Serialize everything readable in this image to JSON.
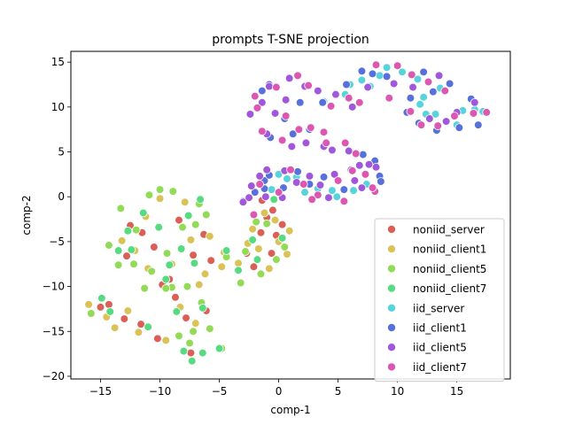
{
  "chart_data": {
    "type": "scatter",
    "title": "prompts T-SNE projection",
    "xlabel": "comp-1",
    "ylabel": "comp-2",
    "xlim": [
      -17.5,
      19.5
    ],
    "ylim": [
      -20.3,
      16.2
    ],
    "xticks": [
      -15,
      -10,
      -5,
      0,
      5,
      10,
      15
    ],
    "yticks": [
      -20,
      -15,
      -10,
      -5,
      0,
      5,
      10,
      15
    ],
    "grid": false,
    "legend_position": "lower-right",
    "series": [
      {
        "name": "noniid_server",
        "color": "#db5f57",
        "points": [
          [
            -15.0,
            -12.3
          ],
          [
            -13.0,
            -13.6
          ],
          [
            -11.5,
            -4.0
          ],
          [
            -10.5,
            -5.6
          ],
          [
            -9.2,
            -9.2
          ],
          [
            -7.2,
            -6.5
          ],
          [
            -6.3,
            -4.2
          ],
          [
            -7.8,
            -13.5
          ],
          [
            -10.2,
            -15.8
          ],
          [
            -11.6,
            -14.2
          ],
          [
            -8.4,
            -2.6
          ],
          [
            -1.0,
            -2.3
          ],
          [
            -0.5,
            -1.5
          ],
          [
            -0.2,
            -4.3
          ],
          [
            -2.1,
            -7.8
          ],
          [
            -0.6,
            -6.3
          ],
          [
            -12.8,
            -6.6
          ],
          [
            -5.7,
            -7.1
          ],
          [
            -1.5,
            -4.0
          ],
          [
            0.3,
            -3.1
          ],
          [
            -8.7,
            -11.2
          ],
          [
            -12.5,
            -3.2
          ],
          [
            -6.1,
            -12.7
          ],
          [
            -9.8,
            -9.8
          ],
          [
            -7.4,
            -17.4
          ],
          [
            -1.4,
            -0.4
          ],
          [
            -2.7,
            -6.3
          ],
          [
            -14.3,
            -12.0
          ]
        ]
      },
      {
        "name": "noniid_client1",
        "color": "#dbc257",
        "points": [
          [
            -16.0,
            -12.0
          ],
          [
            -14.5,
            -13.4
          ],
          [
            -12.7,
            -12.7
          ],
          [
            -11.8,
            -15.1
          ],
          [
            -11.0,
            -8.0
          ],
          [
            -9.0,
            -7.5
          ],
          [
            -7.4,
            -4.8
          ],
          [
            -5.8,
            -4.4
          ],
          [
            -4.8,
            -7.8
          ],
          [
            -6.7,
            -9.8
          ],
          [
            -8.3,
            -12.3
          ],
          [
            -9.5,
            -16.0
          ],
          [
            -3.4,
            -7.4
          ],
          [
            -1.7,
            -5.8
          ],
          [
            0.0,
            -5.0
          ],
          [
            0.7,
            -6.4
          ],
          [
            -0.8,
            -8.0
          ],
          [
            -2.2,
            -3.6
          ],
          [
            -1.2,
            -1.8
          ],
          [
            -13.2,
            -4.9
          ],
          [
            -11.2,
            -2.2
          ],
          [
            -10.0,
            -0.2
          ],
          [
            -7.9,
            -0.6
          ],
          [
            -6.2,
            -8.6
          ],
          [
            -13.8,
            -14.6
          ],
          [
            -7.0,
            -14.1
          ],
          [
            -0.3,
            -2.6
          ],
          [
            -2.6,
            -5.2
          ],
          [
            0.9,
            -3.8
          ],
          [
            -4.6,
            -6.2
          ],
          [
            -12.1,
            -6.0
          ]
        ]
      },
      {
        "name": "noniid_client5",
        "color": "#91db57",
        "points": [
          [
            -15.8,
            -13.0
          ],
          [
            -13.3,
            -1.3
          ],
          [
            -12.0,
            -3.7
          ],
          [
            -10.9,
            0.2
          ],
          [
            -10.0,
            0.8
          ],
          [
            -8.9,
            0.6
          ],
          [
            -6.7,
            -0.8
          ],
          [
            -6.1,
            -2.0
          ],
          [
            -7.0,
            -3.1
          ],
          [
            -8.1,
            -3.4
          ],
          [
            -9.4,
            -6.3
          ],
          [
            -10.7,
            -8.3
          ],
          [
            -11.3,
            -10.2
          ],
          [
            -9.0,
            -10.1
          ],
          [
            -7.7,
            -10.0
          ],
          [
            -6.5,
            -11.8
          ],
          [
            -5.8,
            -14.7
          ],
          [
            -7.5,
            -16.3
          ],
          [
            -8.4,
            -15.5
          ],
          [
            -4.8,
            -16.9
          ],
          [
            -3.2,
            -9.6
          ],
          [
            -2.8,
            -6.1
          ],
          [
            -1.5,
            -8.6
          ],
          [
            -0.2,
            -7.0
          ],
          [
            0.5,
            -5.6
          ],
          [
            -1.0,
            -3.0
          ],
          [
            -12.2,
            -7.5
          ],
          [
            -14.3,
            -5.4
          ],
          [
            -7.2,
            -15.0
          ],
          [
            -9.5,
            -10.2
          ],
          [
            -4.4,
            -6.7
          ],
          [
            -1.9,
            -2.8
          ],
          [
            -13.5,
            -7.6
          ]
        ]
      },
      {
        "name": "noniid_client7",
        "color": "#57db80",
        "points": [
          [
            -14.9,
            -11.3
          ],
          [
            -13.5,
            -6.0
          ],
          [
            -12.4,
            -5.9
          ],
          [
            -11.4,
            -1.8
          ],
          [
            -9.5,
            -9.2
          ],
          [
            -8.2,
            -5.8
          ],
          [
            -7.1,
            -7.4
          ],
          [
            -5.0,
            -16.9
          ],
          [
            -6.4,
            -12.4
          ],
          [
            -8.6,
            -12.8
          ],
          [
            -11.0,
            -14.5
          ],
          [
            -10.1,
            -3.4
          ],
          [
            -6.6,
            -0.3
          ],
          [
            -3.4,
            -8.2
          ],
          [
            -1.8,
            -7.0
          ],
          [
            0.3,
            -4.6
          ],
          [
            -0.4,
            -0.3
          ],
          [
            -7.3,
            -18.3
          ],
          [
            -8.0,
            -17.2
          ],
          [
            -12.7,
            -3.8
          ],
          [
            -7.6,
            -2.1
          ],
          [
            -2.2,
            -4.8
          ],
          [
            -6.4,
            -17.4
          ],
          [
            -9.2,
            -7.6
          ],
          [
            -14.2,
            -12.8
          ],
          [
            -4.4,
            -6.0
          ]
        ]
      },
      {
        "name": "iid_server",
        "color": "#57d3db",
        "points": [
          [
            6.0,
            12.5
          ],
          [
            7.0,
            13.0
          ],
          [
            8.5,
            13.5
          ],
          [
            10.4,
            13.9
          ],
          [
            11.7,
            13.1
          ],
          [
            12.2,
            11.1
          ],
          [
            12.4,
            9.2
          ],
          [
            13.2,
            9.2
          ],
          [
            15.0,
            8.0
          ],
          [
            15.5,
            9.6
          ],
          [
            16.5,
            9.7
          ],
          [
            17.2,
            9.5
          ],
          [
            5.6,
            11.4
          ],
          [
            3.8,
            10.6
          ],
          [
            0.0,
            2.5
          ],
          [
            0.7,
            2.0
          ],
          [
            1.5,
            2.2
          ],
          [
            3.3,
            0.9
          ],
          [
            4.5,
            0.7
          ],
          [
            4.9,
            0.0
          ],
          [
            6.3,
            0.7
          ],
          [
            7.4,
            1.4
          ],
          [
            2.2,
            0.5
          ],
          [
            -0.6,
            0.8
          ],
          [
            11.9,
            10.3
          ],
          [
            7.7,
            12.3
          ],
          [
            9.1,
            14.4
          ],
          [
            13.6,
            12.1
          ]
        ]
      },
      {
        "name": "iid_client1",
        "color": "#5770db",
        "points": [
          [
            -3.0,
            -0.5
          ],
          [
            -2.0,
            0.5
          ],
          [
            -1.2,
            1.8
          ],
          [
            -0.8,
            2.4
          ],
          [
            0.4,
            1.0
          ],
          [
            1.6,
            2.8
          ],
          [
            2.6,
            1.4
          ],
          [
            3.8,
            2.2
          ],
          [
            5.5,
            0.8
          ],
          [
            6.1,
            3.0
          ],
          [
            7.1,
            4.7
          ],
          [
            8.1,
            4.0
          ],
          [
            8.5,
            2.3
          ],
          [
            7.0,
            14.0
          ],
          [
            7.9,
            13.7
          ],
          [
            9.1,
            13.4
          ],
          [
            11.1,
            11.0
          ],
          [
            12.2,
            13.9
          ],
          [
            11.8,
            8.2
          ],
          [
            13.3,
            7.4
          ],
          [
            15.2,
            7.7
          ],
          [
            16.8,
            8.0
          ],
          [
            16.2,
            10.9
          ],
          [
            2.6,
            7.5
          ],
          [
            1.2,
            7.0
          ],
          [
            -0.7,
            6.6
          ],
          [
            0.5,
            8.7
          ],
          [
            -0.8,
            12.5
          ],
          [
            -1.4,
            11.8
          ],
          [
            3.7,
            10.5
          ],
          [
            5.7,
            12.5
          ],
          [
            13.0,
            11.7
          ],
          [
            10.8,
            9.4
          ],
          [
            -1.2,
            0.9
          ],
          [
            1.8,
            10.5
          ],
          [
            8.6,
            1.7
          ],
          [
            14.4,
            12.6
          ]
        ]
      },
      {
        "name": "iid_client5",
        "color": "#a157db",
        "points": [
          [
            -3.0,
            -0.6
          ],
          [
            -2.3,
            1.2
          ],
          [
            -1.6,
            2.3
          ],
          [
            -1.1,
            0.0
          ],
          [
            0.5,
            2.9
          ],
          [
            1.5,
            1.6
          ],
          [
            2.6,
            2.3
          ],
          [
            3.5,
            1.3
          ],
          [
            4.7,
            2.5
          ],
          [
            6.4,
            1.8
          ],
          [
            7.0,
            1.0
          ],
          [
            8.2,
            3.3
          ],
          [
            -2.4,
            9.2
          ],
          [
            -1.4,
            10.5
          ],
          [
            -0.3,
            9.3
          ],
          [
            0.6,
            10.8
          ],
          [
            -0.8,
            12.3
          ],
          [
            0.9,
            13.2
          ],
          [
            2.2,
            12.3
          ],
          [
            3.3,
            11.8
          ],
          [
            4.8,
            11.4
          ],
          [
            6.2,
            10.0
          ],
          [
            7.5,
            12.2
          ],
          [
            9.7,
            12.6
          ],
          [
            11.3,
            12.2
          ],
          [
            12.7,
            8.7
          ],
          [
            14.1,
            8.4
          ],
          [
            15.0,
            9.4
          ],
          [
            16.5,
            10.5
          ],
          [
            -1.0,
            7.0
          ],
          [
            1.1,
            5.6
          ],
          [
            2.3,
            6.0
          ],
          [
            3.8,
            5.6
          ],
          [
            4.5,
            5.2
          ],
          [
            5.9,
            5.1
          ],
          [
            6.8,
            3.5
          ],
          [
            0.3,
            -0.1
          ],
          [
            7.6,
            3.6
          ],
          [
            -2.5,
            -0.1
          ],
          [
            4.2,
            -0.1
          ],
          [
            13.5,
            13.5
          ],
          [
            -1.0,
            3.0
          ]
        ]
      },
      {
        "name": "iid_client7",
        "color": "#db57b2",
        "points": [
          [
            -1.6,
            1.4
          ],
          [
            0.0,
            0.5
          ],
          [
            1.0,
            3.0
          ],
          [
            2.1,
            1.4
          ],
          [
            3.3,
            0.2
          ],
          [
            5.0,
            1.8
          ],
          [
            6.2,
            2.9
          ],
          [
            7.3,
            2.5
          ],
          [
            8.1,
            0.6
          ],
          [
            6.5,
            4.8
          ],
          [
            5.6,
            6.0
          ],
          [
            4.0,
            6.0
          ],
          [
            2.7,
            7.7
          ],
          [
            1.7,
            7.5
          ],
          [
            0.3,
            6.3
          ],
          [
            -1.4,
            7.3
          ],
          [
            -2.0,
            11.2
          ],
          [
            -0.2,
            12.2
          ],
          [
            1.6,
            13.5
          ],
          [
            2.5,
            12.4
          ],
          [
            4.4,
            10.1
          ],
          [
            5.9,
            11.0
          ],
          [
            8.2,
            14.7
          ],
          [
            10.0,
            14.6
          ],
          [
            11.2,
            13.6
          ],
          [
            12.6,
            12.8
          ],
          [
            11.1,
            9.5
          ],
          [
            12.0,
            8.0
          ],
          [
            13.4,
            7.9
          ],
          [
            14.8,
            9.0
          ],
          [
            16.4,
            9.3
          ],
          [
            17.5,
            9.4
          ],
          [
            3.8,
            7.2
          ],
          [
            -1.8,
            9.9
          ],
          [
            6.8,
            10.5
          ],
          [
            9.3,
            11.0
          ],
          [
            -2.1,
            -2.0
          ],
          [
            5.5,
            -0.5
          ],
          [
            7.9,
            1.0
          ],
          [
            14.0,
            11.8
          ],
          [
            0.6,
            9.0
          ],
          [
            2.8,
            -0.3
          ]
        ]
      }
    ]
  }
}
